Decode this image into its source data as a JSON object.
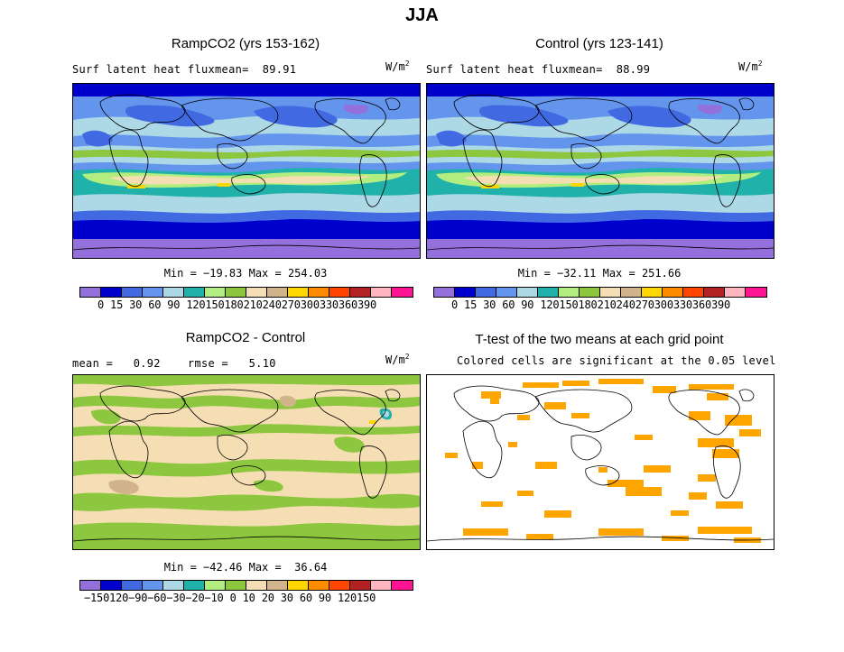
{
  "title": "JJA",
  "colors": {
    "abs_scale": [
      "#9370DB",
      "#0000CD",
      "#4169E1",
      "#6495ED",
      "#ADD8E6",
      "#20B2AA",
      "#B2EE7F",
      "#8DC63F",
      "#F5DEB3",
      "#D2B48C",
      "#FFD700",
      "#FF8C00",
      "#FF4500",
      "#B22222",
      "#FFB6C1",
      "#FF1493"
    ],
    "diff_scale": [
      "#9370DB",
      "#0000CD",
      "#4169E1",
      "#6495ED",
      "#ADD8E6",
      "#20B2AA",
      "#B2EE7F",
      "#8DC63F",
      "#F5DEB3",
      "#D2B48C",
      "#FFD700",
      "#FF8C00",
      "#FF4500",
      "#B22222",
      "#FFB6C1",
      "#FF1493"
    ],
    "ttest": "#FFA500"
  },
  "panels": {
    "top_left": {
      "title": "RampCO2 (yrs 153-162)",
      "subtitle": "Surf latent heat fluxmean=  89.91",
      "unit": "W/m",
      "unit_exp": "2",
      "minmax": "Min = −19.83 Max = 254.03",
      "colorbar_ticks": "0  15  30  60  90 120150180210240270300330360390"
    },
    "top_right": {
      "title": "Control (yrs 123-141)",
      "subtitle": "Surf latent heat fluxmean=  88.99",
      "unit": "W/m",
      "unit_exp": "2",
      "minmax": "Min = −32.11 Max = 251.66",
      "colorbar_ticks": "0  15  30  60  90 120150180210240270300330360390"
    },
    "bottom_left": {
      "title": "RampCO2 - Control",
      "subtitle": "mean =   0.92    rmse =   5.10",
      "unit": "W/m",
      "unit_exp": "2",
      "minmax": "Min = −42.46 Max =  36.64",
      "colorbar_ticks": "−150120−90−60−30−20−10  0   10  20  30  60  90 120150"
    },
    "bottom_right": {
      "title": "T-test of the two means at each grid point",
      "subtitle": "Colored cells are significant at the 0.05 level"
    }
  }
}
